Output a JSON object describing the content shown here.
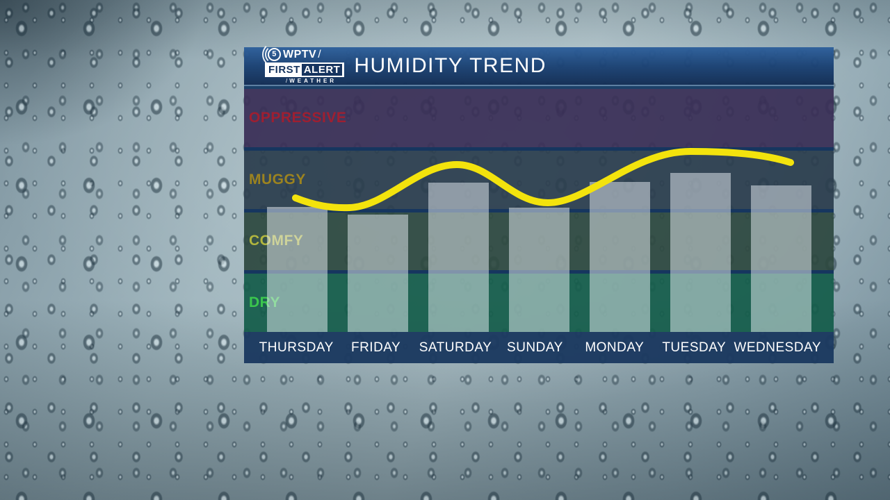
{
  "header": {
    "title": "HUMIDITY TREND",
    "logo": {
      "five": "5",
      "station": "WPTV",
      "slash": "/",
      "first": "FIRST",
      "alert": "ALERT",
      "weather": "WEATHER"
    }
  },
  "colors": {
    "header_gradient_top": "#2e609c",
    "header_gradient_bottom": "#122d54",
    "day_strip": "#1c3a60",
    "band_separator": "#16365f",
    "trend_line": "#f3e30d",
    "bar_fill": "rgba(233,240,245,0.5)",
    "background_glass": "#9db2bb"
  },
  "chart": {
    "bands": [
      {
        "label": "OPPRESSIVE",
        "text_color": "#9e1f31",
        "bg": "rgba(57,46,86,0.93)"
      },
      {
        "label": "MUGGY",
        "text_color": "#9c831f",
        "bg": "rgba(43,61,77,0.93)"
      },
      {
        "label": "COMFY",
        "text_color": "#b2b63e",
        "bg": "rgba(45,72,64,0.93)"
      },
      {
        "label": "DRY",
        "text_color": "#3bc74d",
        "bg": "rgba(20,93,74,0.93)"
      }
    ],
    "days": [
      "THURSDAY",
      "FRIDAY",
      "SATURDAY",
      "SUNDAY",
      "MONDAY",
      "TUESDAY",
      "WEDNESDAY"
    ],
    "bar_heights_pct": [
      50.6,
      47.5,
      60.4,
      50.3,
      60.7,
      64.3,
      59.3
    ],
    "bar_color": "rgba(233,240,245,0.5)",
    "line_color": "#f3e30d",
    "line_width": 10,
    "line_path": "M74,163 C102,174 125,178 152,177 C205,175 250,115 306,115 C355,115 385,170 437,170 C495,170 560,96 642,96 C700,96 748,100 786,112"
  },
  "chart_data": {
    "type": "bar",
    "title": "HUMIDITY TREND",
    "categories": [
      "THURSDAY",
      "FRIDAY",
      "SATURDAY",
      "SUNDAY",
      "MONDAY",
      "TUESDAY",
      "WEDNESDAY"
    ],
    "y_axis": {
      "type": "category-bands",
      "bands_bottom_to_top": [
        "DRY",
        "COMFY",
        "MUGGY",
        "OPPRESSIVE"
      ],
      "band_label_colors": [
        "#3bc74d",
        "#b2b63e",
        "#9c831f",
        "#9e1f31"
      ],
      "scale_note": "values in band units: 0 = chart bottom, 1 = top of DRY, 2 = top of COMFY, 3 = top of MUGGY, 4 = top of OPPRESSIVE",
      "ylim": [
        0,
        4
      ]
    },
    "series": [
      {
        "name": "humidity-bars",
        "type": "bar",
        "values_band_units": [
          2.07,
          1.94,
          2.46,
          2.06,
          2.47,
          2.62,
          2.42
        ]
      },
      {
        "name": "humidity-trend-line",
        "type": "line",
        "color": "#f3e30d",
        "values_band_units": [
          2.2,
          2.3,
          2.75,
          2.2,
          2.6,
          2.97,
          2.8
        ]
      }
    ],
    "legend": "none",
    "grid": "horizontal navy separators between bands",
    "xlabel": "",
    "ylabel": ""
  }
}
